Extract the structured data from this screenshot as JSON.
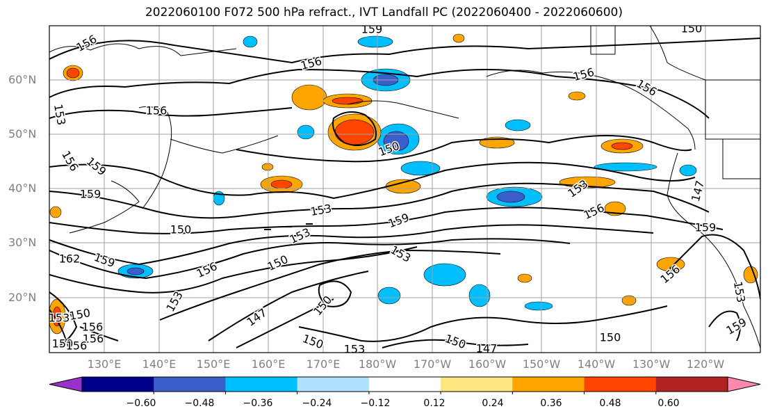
{
  "title": "2022060100 F072 500 hPa refract., IVT Landfall PC (2022060400 - 2022060600)",
  "lat_labels": [
    "60°N",
    "50°N",
    "40°N",
    "30°N",
    "20°N"
  ],
  "lon_labels": [
    "130°E",
    "140°E",
    "150°E",
    "160°E",
    "170°E",
    "180°W",
    "170°W",
    "160°W",
    "150°W",
    "140°W",
    "130°W",
    "120°W"
  ],
  "colorbar": {
    "ticks": [
      "−0.60",
      "−0.48",
      "−0.36",
      "−0.24",
      "−0.12",
      "0.12",
      "0.24",
      "0.36",
      "0.48",
      "0.60"
    ],
    "colors": [
      "#9932cc",
      "#00008b",
      "#3a5fcd",
      "#00bfff",
      "#b0e2ff",
      "#ffffff",
      "#ffe680",
      "#ffa500",
      "#ff4500",
      "#b22222",
      "#ff88b0"
    ]
  },
  "contour_labels": [
    "156",
    "159",
    "156",
    "156",
    "156",
    "156",
    "153",
    "156",
    "159",
    "159",
    "153",
    "150",
    "153",
    "159",
    "153",
    "153",
    "162",
    "159",
    "156",
    "153",
    "150",
    "147",
    "150",
    "150",
    "150",
    "153",
    "156",
    "156",
    "150",
    "147",
    "150",
    "156",
    "159",
    "153",
    "159",
    "156",
    "150",
    "147",
    "150",
    "150",
    "153",
    "156"
  ],
  "colors": {
    "contour": "#000000",
    "grid": "#a0a0a0",
    "coast": "#000000"
  }
}
